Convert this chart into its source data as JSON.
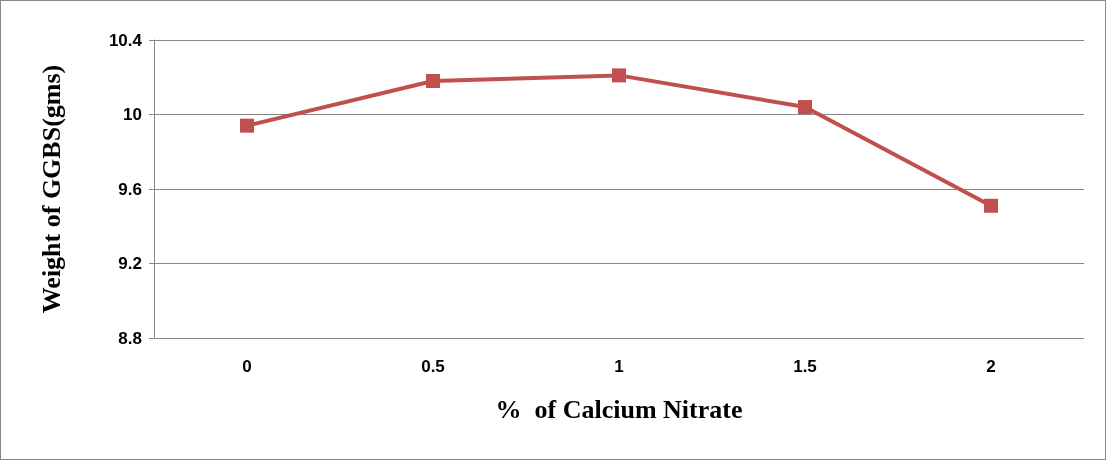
{
  "chart_data": {
    "type": "line",
    "xlabel": "%  of Calcium Nitrate",
    "ylabel": "Weight of GGBS(gms)",
    "categories": [
      "0",
      "0.5",
      "1",
      "1.5",
      "2"
    ],
    "series": [
      {
        "color": "#c0504d",
        "values": [
          9.94,
          10.18,
          10.21,
          10.04,
          9.51
        ]
      }
    ],
    "ylim": [
      8.8,
      10.4
    ],
    "yticks": [
      8.8,
      9.2,
      9.6,
      10,
      10.4
    ],
    "grid": "y",
    "marker": "square",
    "line_style": "solid"
  }
}
